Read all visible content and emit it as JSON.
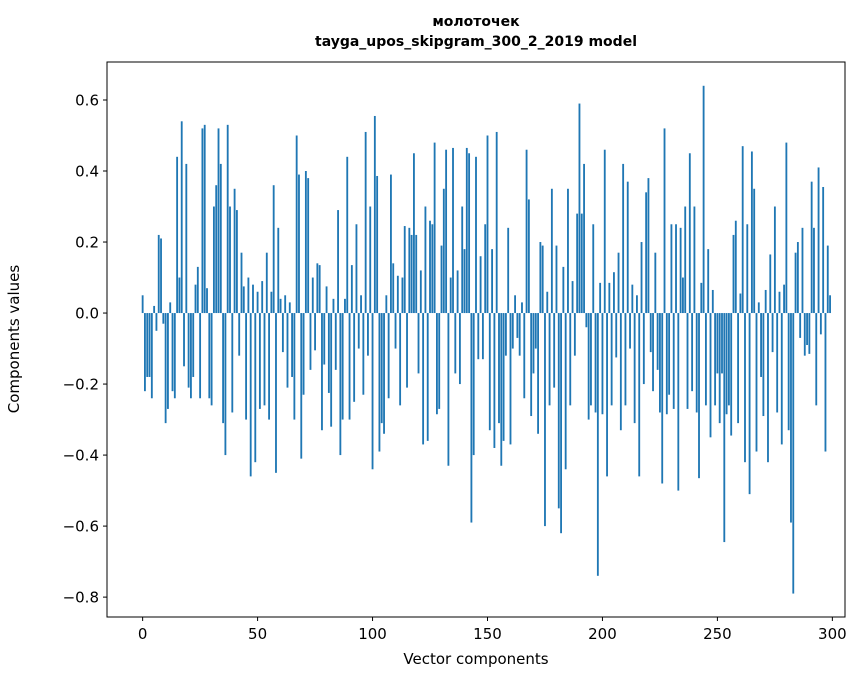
{
  "figure": {
    "title_line1": "молоточек",
    "title_line2": "tayga_upos_skipgram_300_2_2019 model"
  },
  "chart_data": {
    "type": "bar",
    "title_lines": [
      "молоточек",
      "tayga_upos_skipgram_300_2_2019 model"
    ],
    "xlabel": "Vector components",
    "ylabel": "Components values",
    "bar_color": "#1f77b4",
    "axis_color": "#000000",
    "background": "#ffffff",
    "grid": false,
    "legend": false,
    "bar_width": 0.8,
    "xlim": [
      -15.5,
      305.5
    ],
    "ylim": [
      -0.856,
      0.707
    ],
    "xticks": [
      0,
      50,
      100,
      150,
      200,
      250,
      300
    ],
    "yticks": [
      -0.8,
      -0.6,
      -0.4,
      -0.2,
      0.0,
      0.2,
      0.4,
      0.6
    ],
    "x_is_index": true,
    "n_components": 300,
    "values": [
      0.05,
      -0.22,
      -0.18,
      -0.18,
      -0.24,
      0.02,
      -0.05,
      0.22,
      0.21,
      -0.03,
      -0.31,
      -0.27,
      0.03,
      -0.22,
      -0.24,
      0.44,
      0.1,
      0.54,
      -0.15,
      0.42,
      -0.21,
      -0.24,
      -0.18,
      0.08,
      0.13,
      -0.24,
      0.52,
      0.53,
      0.07,
      -0.24,
      -0.26,
      0.3,
      0.36,
      0.52,
      0.42,
      -0.31,
      -0.4,
      0.53,
      0.3,
      -0.28,
      0.35,
      0.29,
      -0.12,
      0.17,
      0.075,
      -0.3,
      0.1,
      -0.46,
      0.08,
      -0.42,
      0.06,
      -0.27,
      0.09,
      -0.26,
      0.17,
      -0.3,
      0.06,
      0.36,
      -0.45,
      0.24,
      0.04,
      -0.11,
      0.05,
      -0.21,
      0.03,
      -0.18,
      -0.3,
      0.5,
      0.39,
      -0.41,
      -0.23,
      0.4,
      0.38,
      -0.16,
      0.1,
      -0.105,
      0.14,
      0.135,
      -0.33,
      -0.145,
      0.075,
      -0.225,
      -0.32,
      0.04,
      -0.16,
      0.29,
      -0.4,
      -0.3,
      0.04,
      0.44,
      -0.3,
      0.135,
      -0.25,
      0.25,
      -0.1,
      0.05,
      -0.23,
      0.51,
      -0.12,
      0.3,
      -0.44,
      0.555,
      0.386,
      -0.39,
      -0.31,
      -0.34,
      0.05,
      -0.24,
      0.39,
      0.14,
      -0.1,
      0.105,
      -0.26,
      0.1,
      0.245,
      -0.21,
      0.24,
      0.22,
      0.45,
      0.22,
      -0.17,
      0.12,
      -0.37,
      0.3,
      -0.36,
      0.26,
      0.25,
      0.48,
      -0.285,
      -0.27,
      0.19,
      0.35,
      0.46,
      -0.43,
      0.1,
      0.465,
      -0.17,
      0.12,
      -0.2,
      0.3,
      0.18,
      0.465,
      0.45,
      -0.59,
      -0.4,
      0.44,
      -0.13,
      0.16,
      -0.13,
      0.25,
      0.5,
      -0.33,
      0.18,
      -0.38,
      0.51,
      -0.31,
      -0.43,
      -0.36,
      -0.12,
      0.24,
      -0.37,
      -0.1,
      0.05,
      -0.07,
      -0.12,
      0.03,
      -0.24,
      0.46,
      0.32,
      -0.29,
      -0.17,
      -0.1,
      -0.34,
      0.2,
      0.19,
      -0.6,
      0.06,
      -0.26,
      0.35,
      -0.21,
      0.19,
      -0.55,
      -0.62,
      0.13,
      -0.44,
      0.35,
      -0.26,
      0.09,
      -0.12,
      0.28,
      0.59,
      0.28,
      0.42,
      -0.04,
      -0.3,
      -0.26,
      0.25,
      -0.28,
      -0.74,
      0.085,
      -0.285,
      0.46,
      -0.46,
      0.085,
      -0.26,
      0.115,
      -0.125,
      0.17,
      -0.33,
      0.42,
      -0.26,
      0.37,
      -0.1,
      0.08,
      -0.31,
      0.05,
      -0.46,
      0.2,
      -0.2,
      0.34,
      0.38,
      -0.11,
      -0.22,
      0.17,
      -0.16,
      -0.28,
      -0.48,
      0.52,
      -0.285,
      -0.23,
      0.25,
      -0.27,
      0.25,
      -0.5,
      0.24,
      0.1,
      0.3,
      -0.27,
      0.45,
      -0.22,
      0.3,
      -0.28,
      -0.465,
      0.085,
      0.64,
      -0.26,
      0.18,
      -0.35,
      0.065,
      -0.26,
      -0.17,
      -0.31,
      -0.17,
      -0.645,
      -0.285,
      -0.26,
      -0.345,
      0.22,
      0.26,
      -0.31,
      0.055,
      0.47,
      -0.42,
      0.25,
      -0.51,
      0.455,
      0.35,
      -0.39,
      0.03,
      -0.18,
      -0.29,
      0.065,
      -0.42,
      0.165,
      -0.11,
      0.3,
      -0.28,
      0.06,
      -0.37,
      0.08,
      0.48,
      -0.33,
      -0.59,
      -0.79,
      0.17,
      0.2,
      -0.07,
      0.24,
      -0.12,
      -0.09,
      -0.115,
      0.37,
      0.24,
      -0.26,
      0.41,
      -0.06,
      0.355,
      -0.39,
      0.19,
      0.05
    ]
  }
}
